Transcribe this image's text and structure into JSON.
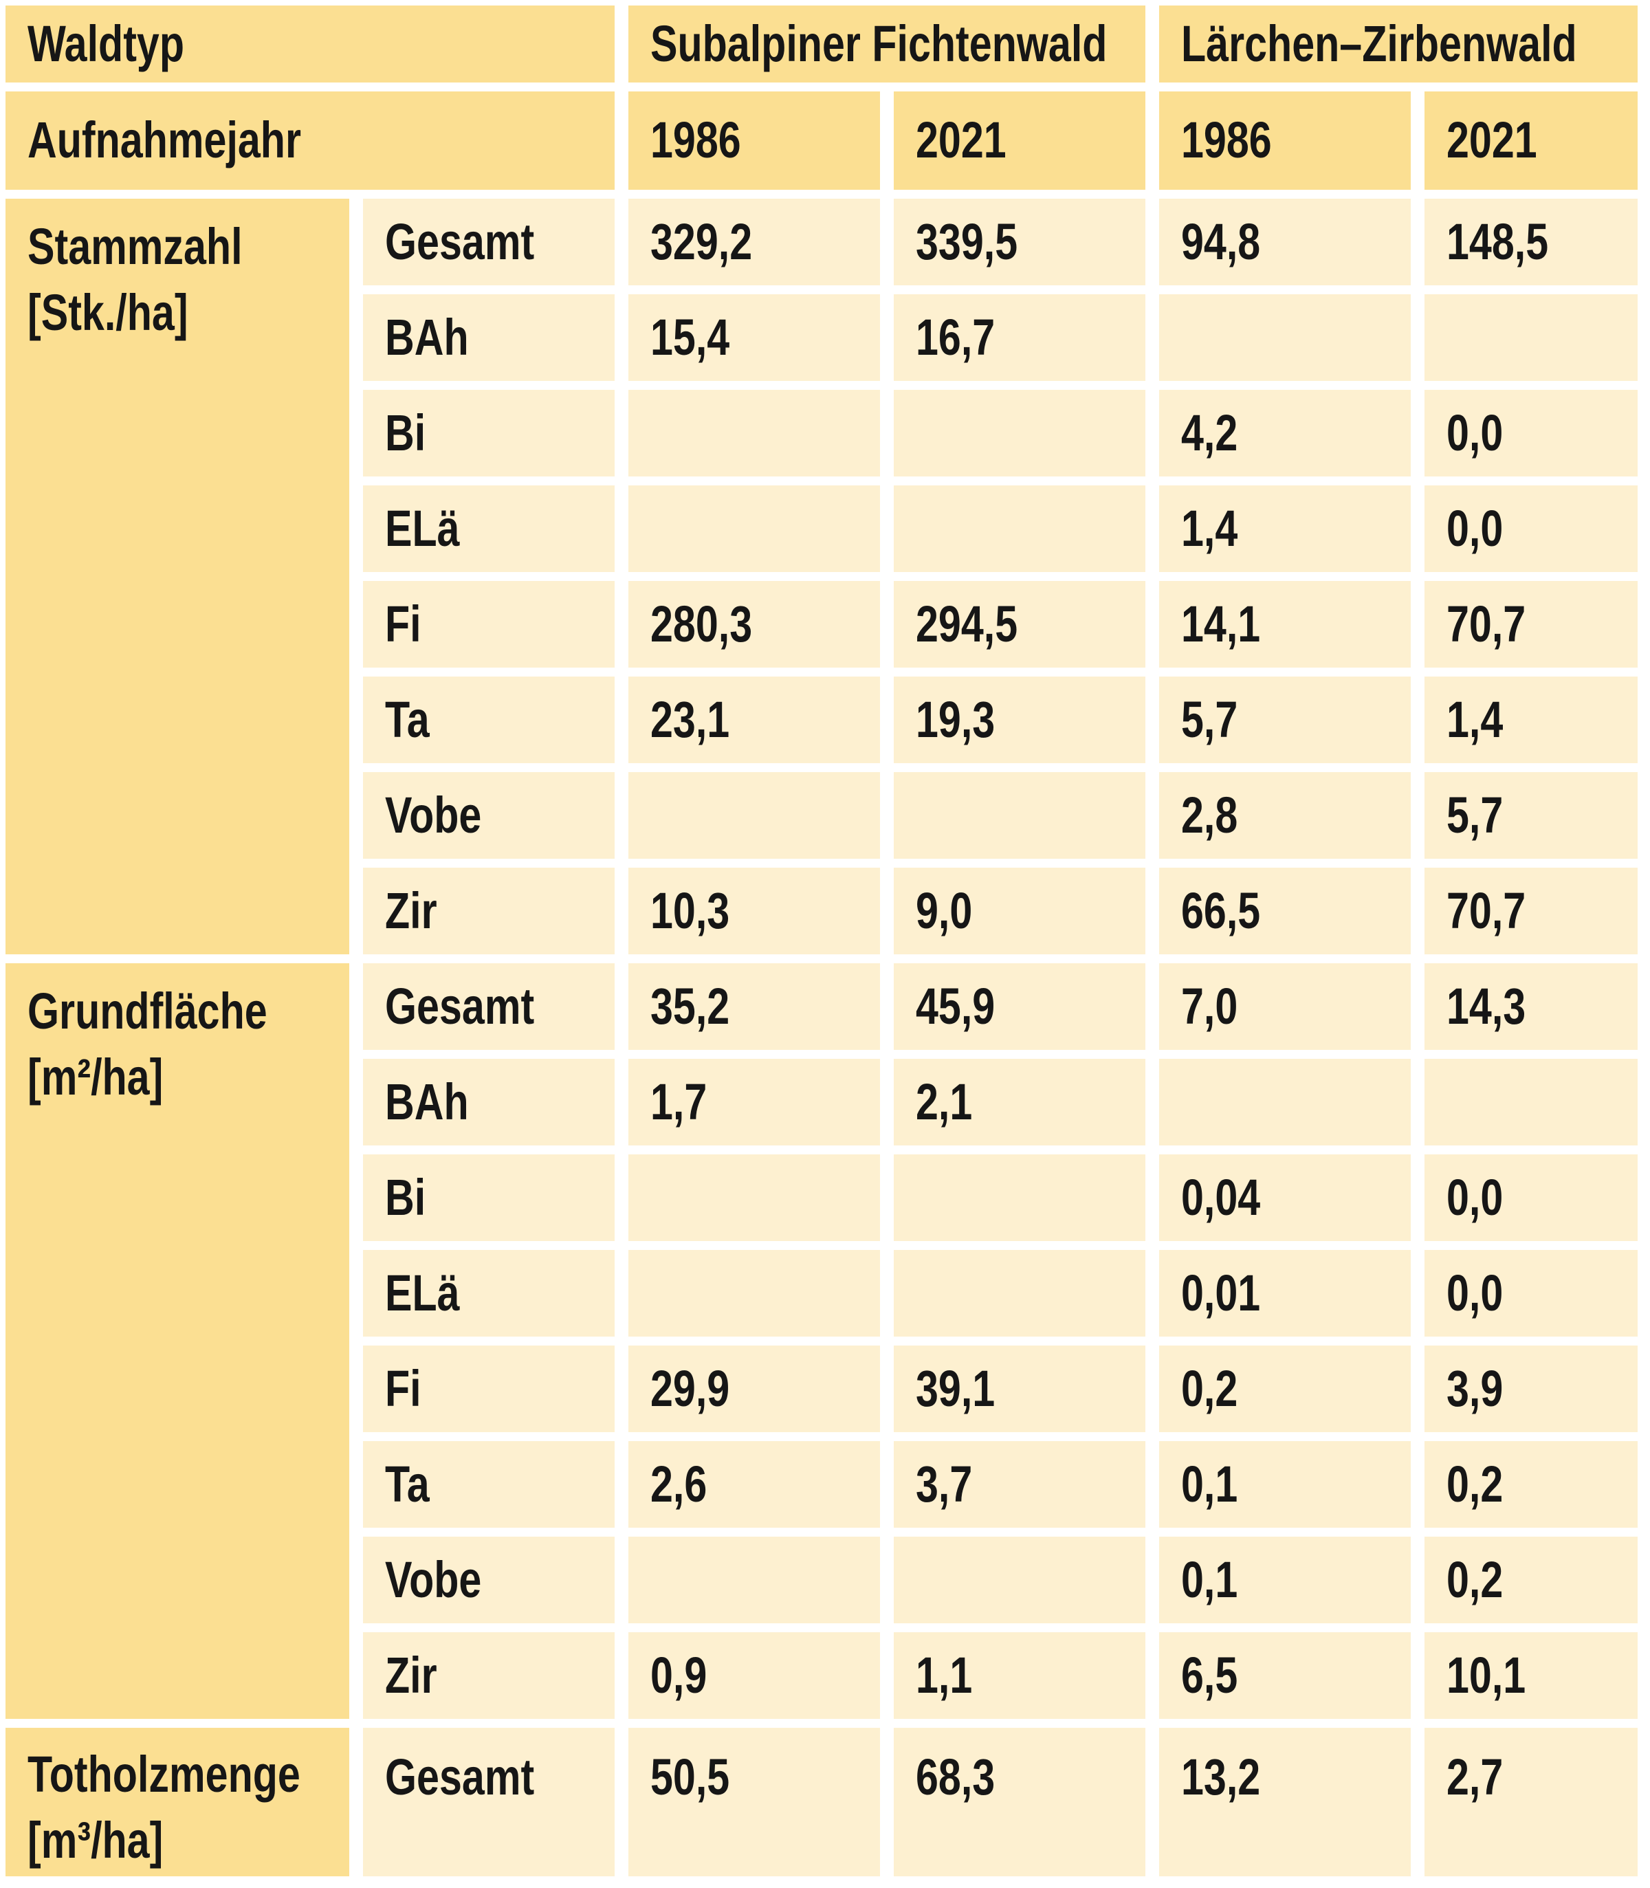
{
  "colors": {
    "header_bg": "#fbdf92",
    "cell_bg": "#fdf0d0",
    "gap_bg": "#ffffff",
    "text": "#161616"
  },
  "table": {
    "header": {
      "waldtyp_label": "Waldtyp",
      "aufnahmejahr_label": "Aufnahmejahr",
      "groups": [
        {
          "label": "Subalpiner Fichtenwald",
          "years": [
            "1986",
            "2021"
          ]
        },
        {
          "label": "Lärchen–Zirbenwald",
          "years": [
            "1986",
            "2021"
          ]
        }
      ]
    },
    "sections": [
      {
        "label": "Stammzahl",
        "unit": "[Stk./ha]",
        "rows": [
          {
            "species": "Gesamt",
            "values": [
              "329,2",
              "339,5",
              "94,8",
              "148,5"
            ]
          },
          {
            "species": "BAh",
            "values": [
              "15,4",
              "16,7",
              "",
              ""
            ]
          },
          {
            "species": "Bi",
            "values": [
              "",
              "",
              "4,2",
              "0,0"
            ]
          },
          {
            "species": "ELä",
            "values": [
              "",
              "",
              "1,4",
              "0,0"
            ]
          },
          {
            "species": "Fi",
            "values": [
              "280,3",
              "294,5",
              "14,1",
              "70,7"
            ]
          },
          {
            "species": "Ta",
            "values": [
              "23,1",
              "19,3",
              "5,7",
              "1,4"
            ]
          },
          {
            "species": "Vobe",
            "values": [
              "",
              "",
              "2,8",
              "5,7"
            ]
          },
          {
            "species": "Zir",
            "values": [
              "10,3",
              "9,0",
              "66,5",
              "70,7"
            ]
          }
        ]
      },
      {
        "label": "Grundfläche",
        "unit": "[m²/ha]",
        "rows": [
          {
            "species": "Gesamt",
            "values": [
              "35,2",
              "45,9",
              "7,0",
              "14,3"
            ]
          },
          {
            "species": "BAh",
            "values": [
              "1,7",
              "2,1",
              "",
              ""
            ]
          },
          {
            "species": "Bi",
            "values": [
              "",
              "",
              "0,04",
              "0,0"
            ]
          },
          {
            "species": "ELä",
            "values": [
              "",
              "",
              "0,01",
              "0,0"
            ]
          },
          {
            "species": "Fi",
            "values": [
              "29,9",
              "39,1",
              "0,2",
              "3,9"
            ]
          },
          {
            "species": "Ta",
            "values": [
              "2,6",
              "3,7",
              "0,1",
              "0,2"
            ]
          },
          {
            "species": "Vobe",
            "values": [
              "",
              "",
              "0,1",
              "0,2"
            ]
          },
          {
            "species": "Zir",
            "values": [
              "0,9",
              "1,1",
              "6,5",
              "10,1"
            ]
          }
        ]
      },
      {
        "label": "Totholzmenge",
        "unit": "[m³/ha]",
        "rows": [
          {
            "species": "Gesamt",
            "values": [
              "50,5",
              "68,3",
              "13,2",
              "2,7"
            ]
          }
        ]
      }
    ]
  },
  "chart_data": {
    "type": "table",
    "waldtyp_groups": [
      "Subalpiner Fichtenwald",
      "Lärchen–Zirbenwald"
    ],
    "aufnahmejahre": [
      1986,
      2021,
      1986,
      2021
    ],
    "sections": [
      {
        "measure": "Stammzahl",
        "unit": "Stk./ha",
        "rows": [
          {
            "species": "Gesamt",
            "values": [
              329.2,
              339.5,
              94.8,
              148.5
            ]
          },
          {
            "species": "BAh",
            "values": [
              15.4,
              16.7,
              null,
              null
            ]
          },
          {
            "species": "Bi",
            "values": [
              null,
              null,
              4.2,
              0.0
            ]
          },
          {
            "species": "ELä",
            "values": [
              null,
              null,
              1.4,
              0.0
            ]
          },
          {
            "species": "Fi",
            "values": [
              280.3,
              294.5,
              14.1,
              70.7
            ]
          },
          {
            "species": "Ta",
            "values": [
              23.1,
              19.3,
              5.7,
              1.4
            ]
          },
          {
            "species": "Vobe",
            "values": [
              null,
              null,
              2.8,
              5.7
            ]
          },
          {
            "species": "Zir",
            "values": [
              10.3,
              9.0,
              66.5,
              70.7
            ]
          }
        ]
      },
      {
        "measure": "Grundfläche",
        "unit": "m²/ha",
        "rows": [
          {
            "species": "Gesamt",
            "values": [
              35.2,
              45.9,
              7.0,
              14.3
            ]
          },
          {
            "species": "BAh",
            "values": [
              1.7,
              2.1,
              null,
              null
            ]
          },
          {
            "species": "Bi",
            "values": [
              null,
              null,
              0.04,
              0.0
            ]
          },
          {
            "species": "ELä",
            "values": [
              null,
              null,
              0.01,
              0.0
            ]
          },
          {
            "species": "Fi",
            "values": [
              29.9,
              39.1,
              0.2,
              3.9
            ]
          },
          {
            "species": "Ta",
            "values": [
              2.6,
              3.7,
              0.1,
              0.2
            ]
          },
          {
            "species": "Vobe",
            "values": [
              null,
              null,
              0.1,
              0.2
            ]
          },
          {
            "species": "Zir",
            "values": [
              0.9,
              1.1,
              6.5,
              10.1
            ]
          }
        ]
      },
      {
        "measure": "Totholzmenge",
        "unit": "m³/ha",
        "rows": [
          {
            "species": "Gesamt",
            "values": [
              50.5,
              68.3,
              13.2,
              2.7
            ]
          }
        ]
      }
    ]
  }
}
